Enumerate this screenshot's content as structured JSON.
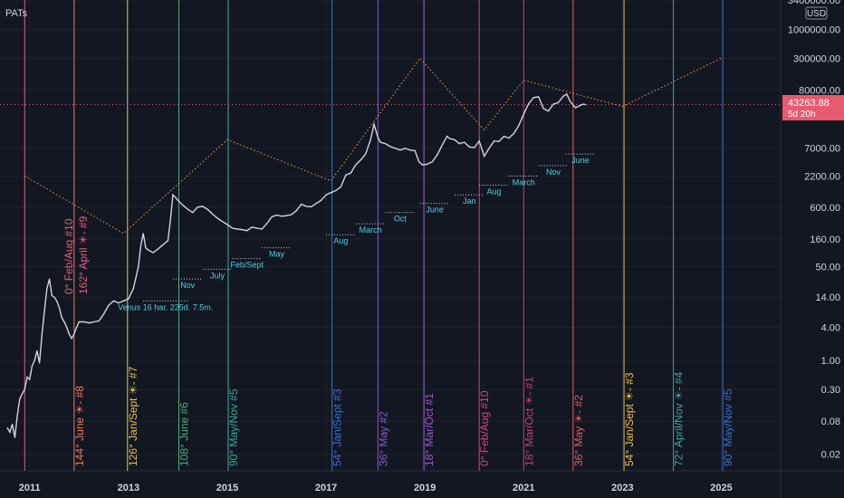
{
  "symbol_label": "PATs",
  "currency_label": "USD",
  "price_badge": {
    "value": "43263.88",
    "countdown": "5d 20h",
    "color": "#e85a6e"
  },
  "chart_data": {
    "type": "line",
    "scale": "log",
    "ylim": [
      0.01,
      3400000
    ],
    "xlim": [
      2010.4,
      2026.2
    ],
    "y_ticks": [
      {
        "value": 3400000,
        "label": "3400000.00"
      },
      {
        "value": 1000000,
        "label": "1000000.00"
      },
      {
        "value": 300000,
        "label": "300000.00"
      },
      {
        "value": 80000,
        "label": "80000.00"
      },
      {
        "value": 7000,
        "label": "7000.00"
      },
      {
        "value": 2200,
        "label": "2200.00"
      },
      {
        "value": 600,
        "label": "600.00"
      },
      {
        "value": 160,
        "label": "160.00"
      },
      {
        "value": 50,
        "label": "50.00"
      },
      {
        "value": 14,
        "label": "14.00"
      },
      {
        "value": 4,
        "label": "4.00"
      },
      {
        "value": 1,
        "label": "1.00"
      },
      {
        "value": 0.3,
        "label": "0.30"
      },
      {
        "value": 0.08,
        "label": "0.08"
      },
      {
        "value": 0.02,
        "label": "0.02"
      }
    ],
    "x_ticks": [
      {
        "value": 2011,
        "label": "2011"
      },
      {
        "value": 2013,
        "label": "2013"
      },
      {
        "value": 2015,
        "label": "2015"
      },
      {
        "value": 2017,
        "label": "2017"
      },
      {
        "value": 2019,
        "label": "2019"
      },
      {
        "value": 2021,
        "label": "2021"
      },
      {
        "value": 2023,
        "label": "2023"
      },
      {
        "value": 2025,
        "label": "2025"
      }
    ],
    "series": [
      {
        "color": "#d1d4dc",
        "points": [
          [
            2010.55,
            0.06
          ],
          [
            2010.6,
            0.05
          ],
          [
            2010.65,
            0.07
          ],
          [
            2010.7,
            0.04
          ],
          [
            2010.75,
            0.1
          ],
          [
            2010.8,
            0.2
          ],
          [
            2010.85,
            0.25
          ],
          [
            2010.9,
            0.3
          ],
          [
            2010.95,
            0.5
          ],
          [
            2011.0,
            0.45
          ],
          [
            2011.05,
            0.8
          ],
          [
            2011.1,
            1.0
          ],
          [
            2011.15,
            1.5
          ],
          [
            2011.2,
            0.9
          ],
          [
            2011.25,
            3
          ],
          [
            2011.3,
            8
          ],
          [
            2011.35,
            20
          ],
          [
            2011.4,
            30
          ],
          [
            2011.45,
            15
          ],
          [
            2011.5,
            14
          ],
          [
            2011.55,
            12
          ],
          [
            2011.6,
            9
          ],
          [
            2011.65,
            6
          ],
          [
            2011.7,
            5
          ],
          [
            2011.75,
            4
          ],
          [
            2011.8,
            3
          ],
          [
            2011.85,
            2.5
          ],
          [
            2011.9,
            3
          ],
          [
            2011.95,
            4
          ],
          [
            2012.0,
            5
          ],
          [
            2012.1,
            5
          ],
          [
            2012.2,
            4.8
          ],
          [
            2012.3,
            5
          ],
          [
            2012.4,
            5.2
          ],
          [
            2012.5,
            7
          ],
          [
            2012.6,
            10
          ],
          [
            2012.7,
            12
          ],
          [
            2012.8,
            11
          ],
          [
            2012.9,
            12
          ],
          [
            2013.0,
            13
          ],
          [
            2013.1,
            20
          ],
          [
            2013.2,
            50
          ],
          [
            2013.25,
            120
          ],
          [
            2013.3,
            200
          ],
          [
            2013.35,
            110
          ],
          [
            2013.4,
            100
          ],
          [
            2013.5,
            90
          ],
          [
            2013.6,
            105
          ],
          [
            2013.7,
            125
          ],
          [
            2013.8,
            150
          ],
          [
            2013.85,
            350
          ],
          [
            2013.9,
            1000
          ],
          [
            2013.95,
            900
          ],
          [
            2014.0,
            800
          ],
          [
            2014.1,
            650
          ],
          [
            2014.2,
            550
          ],
          [
            2014.3,
            480
          ],
          [
            2014.4,
            600
          ],
          [
            2014.5,
            620
          ],
          [
            2014.6,
            550
          ],
          [
            2014.7,
            450
          ],
          [
            2014.8,
            380
          ],
          [
            2014.9,
            330
          ],
          [
            2015.0,
            290
          ],
          [
            2015.1,
            250
          ],
          [
            2015.2,
            240
          ],
          [
            2015.3,
            235
          ],
          [
            2015.4,
            225
          ],
          [
            2015.5,
            260
          ],
          [
            2015.6,
            250
          ],
          [
            2015.7,
            240
          ],
          [
            2015.8,
            300
          ],
          [
            2015.9,
            400
          ],
          [
            2016.0,
            430
          ],
          [
            2016.1,
            410
          ],
          [
            2016.2,
            420
          ],
          [
            2016.3,
            440
          ],
          [
            2016.4,
            520
          ],
          [
            2016.5,
            680
          ],
          [
            2016.6,
            620
          ],
          [
            2016.7,
            610
          ],
          [
            2016.8,
            700
          ],
          [
            2016.9,
            800
          ],
          [
            2017.0,
            1000
          ],
          [
            2017.1,
            1100
          ],
          [
            2017.2,
            1200
          ],
          [
            2017.3,
            1400
          ],
          [
            2017.4,
            2300
          ],
          [
            2017.5,
            2500
          ],
          [
            2017.6,
            3500
          ],
          [
            2017.7,
            4300
          ],
          [
            2017.8,
            5500
          ],
          [
            2017.9,
            10000
          ],
          [
            2017.97,
            19000
          ],
          [
            2018.05,
            11000
          ],
          [
            2018.1,
            9000
          ],
          [
            2018.2,
            8500
          ],
          [
            2018.3,
            7500
          ],
          [
            2018.4,
            7000
          ],
          [
            2018.5,
            6500
          ],
          [
            2018.6,
            7000
          ],
          [
            2018.7,
            6500
          ],
          [
            2018.8,
            6300
          ],
          [
            2018.88,
            4000
          ],
          [
            2018.95,
            3500
          ],
          [
            2019.05,
            3600
          ],
          [
            2019.15,
            4000
          ],
          [
            2019.25,
            5300
          ],
          [
            2019.35,
            8000
          ],
          [
            2019.45,
            11500
          ],
          [
            2019.5,
            10500
          ],
          [
            2019.6,
            10000
          ],
          [
            2019.7,
            8500
          ],
          [
            2019.8,
            9000
          ],
          [
            2019.9,
            7400
          ],
          [
            2020.0,
            7200
          ],
          [
            2020.1,
            9500
          ],
          [
            2020.2,
            5000
          ],
          [
            2020.3,
            7000
          ],
          [
            2020.4,
            9500
          ],
          [
            2020.5,
            9300
          ],
          [
            2020.6,
            11500
          ],
          [
            2020.7,
            10700
          ],
          [
            2020.8,
            13000
          ],
          [
            2020.9,
            18000
          ],
          [
            2021.0,
            29000
          ],
          [
            2021.1,
            45000
          ],
          [
            2021.2,
            58000
          ],
          [
            2021.3,
            60000
          ],
          [
            2021.4,
            37000
          ],
          [
            2021.5,
            33000
          ],
          [
            2021.6,
            44000
          ],
          [
            2021.7,
            47000
          ],
          [
            2021.8,
            61000
          ],
          [
            2021.87,
            67000
          ],
          [
            2021.95,
            48000
          ],
          [
            2022.05,
            38000
          ],
          [
            2022.15,
            42000
          ],
          [
            2022.2,
            44000
          ],
          [
            2022.25,
            43263.88
          ]
        ]
      }
    ],
    "trend_path": [
      [
        2010.9,
        2200
      ],
      [
        2012.9,
        200
      ],
      [
        2015.0,
        10000
      ],
      [
        2017.1,
        1800
      ],
      [
        2018.9,
        300000
      ],
      [
        2020.2,
        15000
      ],
      [
        2021.0,
        120000
      ],
      [
        2023.0,
        40000
      ],
      [
        2025.0,
        300000
      ]
    ],
    "cycle_lines": [
      {
        "x": 2010.9,
        "color": "#e0607a",
        "label": ""
      },
      {
        "x": 2011.9,
        "color": "#ec7a5a",
        "label": "144° June ☀- #8"
      },
      {
        "x": 2012.98,
        "color": "#e5c050",
        "label": "126° Jan/Sept ☀- #7"
      },
      {
        "x": 2014.02,
        "color": "#4caf7a",
        "label": "108° June #6"
      },
      {
        "x": 2015.02,
        "color": "#3ca89a",
        "label": "90° May/Nov #5"
      },
      {
        "x": 2017.12,
        "color": "#3a6fdc",
        "label": "54° Jan/Sept #3"
      },
      {
        "x": 2018.05,
        "color": "#8a5acf",
        "label": "36° May #2"
      },
      {
        "x": 2018.98,
        "color": "#9a5ad4",
        "label": "18° Mar/Oct #1"
      },
      {
        "x": 2020.1,
        "color": "#e0407a",
        "label": "0° Feb/Aug #10"
      },
      {
        "x": 2021.0,
        "color": "#c0407a",
        "label": "18° Mar/Oct ☀- #1"
      },
      {
        "x": 2022.0,
        "color": "#e06060",
        "label": "36° May ☀- #2"
      },
      {
        "x": 2023.03,
        "color": "#e5c050",
        "label": "54° Jan/Sept ☀- #3"
      },
      {
        "x": 2024.03,
        "color": "#3ca89a",
        "label": "72° April/Nov ☀- #4"
      },
      {
        "x": 2025.03,
        "color": "#3a6fdc",
        "label": "90° May/Nov #5"
      }
    ],
    "cycle_label_top": {
      "text1": "0° Feb/Aug #10",
      "text2": "162° April ☀- #9",
      "color": "#e0607a",
      "x": 2010.9
    },
    "month_annotations": [
      {
        "x": 2013.3,
        "y": 12,
        "text": "Venus 16 har. 225d. 7.5m.",
        "width_years": 0.9
      },
      {
        "x": 2013.9,
        "y": 30,
        "text": "Nov",
        "width_years": 0.6
      },
      {
        "x": 2014.5,
        "y": 45,
        "text": "July",
        "width_years": 0.6
      },
      {
        "x": 2015.1,
        "y": 70,
        "text": "Feb/Sept",
        "width_years": 0.6
      },
      {
        "x": 2015.7,
        "y": 110,
        "text": "May",
        "width_years": 0.6
      },
      {
        "x": 2017.0,
        "y": 190,
        "text": "Aug",
        "width_years": 0.6
      },
      {
        "x": 2017.6,
        "y": 300,
        "text": "March",
        "width_years": 0.6
      },
      {
        "x": 2018.2,
        "y": 480,
        "text": "Oct",
        "width_years": 0.6
      },
      {
        "x": 2018.9,
        "y": 700,
        "text": "June",
        "width_years": 0.6
      },
      {
        "x": 2019.6,
        "y": 1000,
        "text": "Jan",
        "width_years": 0.6
      },
      {
        "x": 2020.1,
        "y": 1500,
        "text": "Aug",
        "width_years": 0.6
      },
      {
        "x": 2020.7,
        "y": 2200,
        "text": "March",
        "width_years": 0.6
      },
      {
        "x": 2021.3,
        "y": 3400,
        "text": "Nov",
        "width_years": 0.6
      },
      {
        "x": 2021.85,
        "y": 5500,
        "text": "June",
        "width_years": 0.6
      }
    ],
    "current_price_line": {
      "y": 43263.88,
      "color": "#e85a6e"
    }
  }
}
